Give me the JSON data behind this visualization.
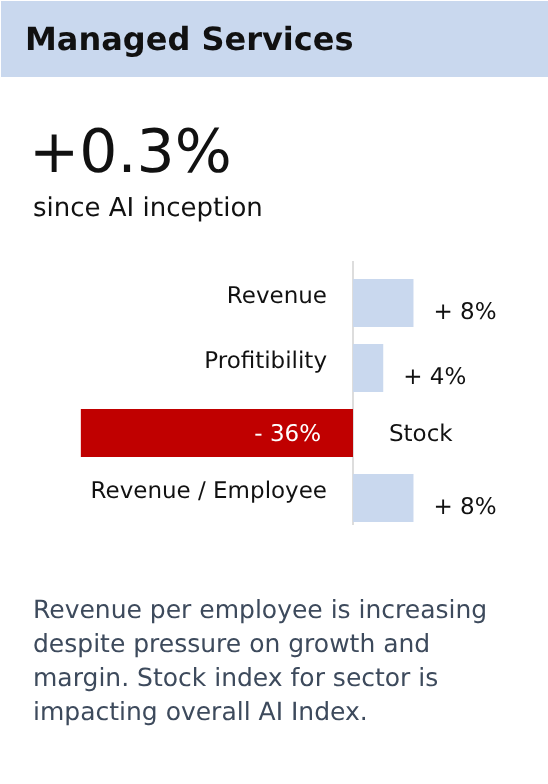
{
  "chart_data": {
    "type": "bar",
    "orientation": "horizontal",
    "title": "Managed Services",
    "subtitle": "+0.3%",
    "annotations": [
      "since AI inception",
      "Revenue per employee is increasing despite pressure on growth and margin. Stock index for sector is impacting overall AI Index."
    ],
    "categories": [
      "Revenue",
      "Profitibility",
      "Stock",
      "Revenue / Employee"
    ],
    "values": [
      8,
      4,
      -36,
      8
    ],
    "colors": [
      "#c9d8ee",
      "#c9d8ee",
      "#c00000",
      "#c9d8ee"
    ],
    "value_labels": [
      "+ 8%",
      "+ 4%",
      "- 36%",
      "+ 8%"
    ]
  }
}
